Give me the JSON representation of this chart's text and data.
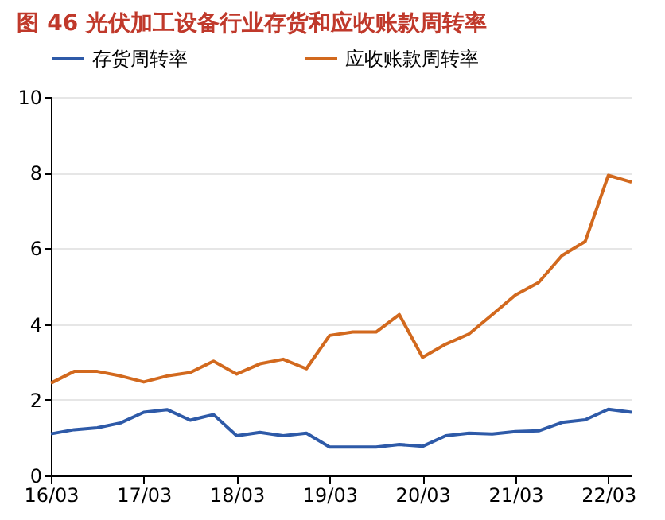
{
  "chart_data": {
    "type": "line",
    "title": "图 46 光伏加工设备行业存货和应收账款周转率",
    "categories": [
      "16/03",
      null,
      null,
      null,
      "17/03",
      null,
      null,
      null,
      "18/03",
      null,
      null,
      null,
      "19/03",
      null,
      null,
      null,
      "20/03",
      null,
      null,
      null,
      "21/03",
      null,
      null,
      null,
      "22/03",
      null
    ],
    "series": [
      {
        "name": "存货周转率",
        "color": "#2e5aa8",
        "values": [
          1.1,
          1.21,
          1.26,
          1.39,
          1.67,
          1.74,
          1.46,
          1.61,
          1.05,
          1.14,
          1.05,
          1.12,
          0.75,
          0.75,
          0.75,
          0.82,
          0.77,
          1.05,
          1.12,
          1.1,
          1.16,
          1.18,
          1.4,
          1.47,
          1.75,
          1.67
        ]
      },
      {
        "name": "应收账款周转率",
        "color": "#d2691e",
        "values": [
          2.44,
          2.75,
          2.75,
          2.63,
          2.47,
          2.63,
          2.72,
          3.02,
          2.68,
          2.95,
          3.07,
          2.82,
          3.7,
          3.79,
          3.79,
          4.25,
          3.12,
          3.47,
          3.74,
          4.25,
          4.77,
          5.1,
          5.81,
          6.18,
          7.93,
          7.75
        ]
      }
    ],
    "ylim": [
      0,
      10
    ],
    "yticks": [
      0,
      2,
      4,
      6,
      8,
      10
    ],
    "grid": "y",
    "legend": "top",
    "marker": "none",
    "line_style": "solid"
  }
}
